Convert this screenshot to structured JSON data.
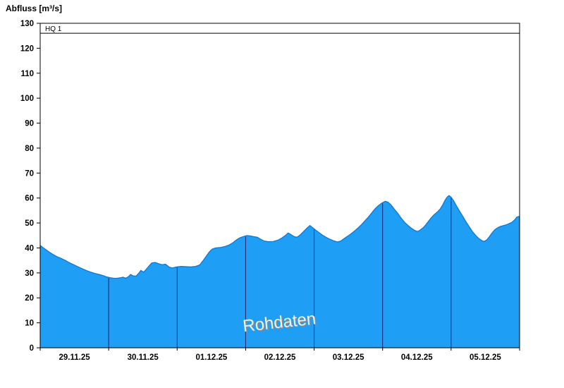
{
  "title": "Abfluss [m³/s]",
  "chart_data": {
    "type": "area",
    "title": "Abfluss [m³/s]",
    "xlabel": "",
    "ylabel": "Abfluss [m³/s]",
    "ylim": [
      0,
      130
    ],
    "ytick_step": 10,
    "y_tick_labels": [
      "0",
      "10",
      "20",
      "30",
      "40",
      "50",
      "60",
      "70",
      "80",
      "90",
      "100",
      "110",
      "120",
      "130"
    ],
    "x_tick_labels": [
      "29.11.25",
      "30.11.25",
      "01.12.25",
      "02.12.25",
      "03.12.25",
      "04.12.25",
      "05.12.25"
    ],
    "x_domain_days": 7,
    "grid": "vertical-day-boundary-lines",
    "legend": "none",
    "watermark": "Rohdaten",
    "watermark_pos": [
      3.5,
      8
    ],
    "threshold": {
      "label": "HQ 1",
      "value": 126
    },
    "colors": {
      "fill": "#1E9EF5",
      "stroke": "#1272C8",
      "day_line": "#1c2273",
      "axis": "#000000",
      "watermark": "#f2f2f2",
      "watermark_shadow": "#8a8a8a"
    },
    "series": [
      {
        "name": "Abfluss Rohdaten",
        "unit": "m³/s",
        "points": [
          [
            0.0,
            41.0
          ],
          [
            0.04,
            40.2
          ],
          [
            0.08,
            39.4
          ],
          [
            0.13,
            38.4
          ],
          [
            0.18,
            37.5
          ],
          [
            0.24,
            36.6
          ],
          [
            0.3,
            35.9
          ],
          [
            0.36,
            35.1
          ],
          [
            0.42,
            34.2
          ],
          [
            0.48,
            33.4
          ],
          [
            0.55,
            32.5
          ],
          [
            0.62,
            31.6
          ],
          [
            0.68,
            30.9
          ],
          [
            0.74,
            30.3
          ],
          [
            0.8,
            29.8
          ],
          [
            0.86,
            29.4
          ],
          [
            0.92,
            28.9
          ],
          [
            0.97,
            28.4
          ],
          [
            1.02,
            28.1
          ],
          [
            1.07,
            27.9
          ],
          [
            1.11,
            27.8
          ],
          [
            1.16,
            28.0
          ],
          [
            1.21,
            28.3
          ],
          [
            1.25,
            27.9
          ],
          [
            1.29,
            28.5
          ],
          [
            1.32,
            29.4
          ],
          [
            1.36,
            28.8
          ],
          [
            1.4,
            28.7
          ],
          [
            1.44,
            29.9
          ],
          [
            1.47,
            31.0
          ],
          [
            1.51,
            30.3
          ],
          [
            1.55,
            31.5
          ],
          [
            1.59,
            32.8
          ],
          [
            1.63,
            34.0
          ],
          [
            1.68,
            34.2
          ],
          [
            1.73,
            33.7
          ],
          [
            1.78,
            33.3
          ],
          [
            1.83,
            33.5
          ],
          [
            1.88,
            32.4
          ],
          [
            1.93,
            32.0
          ],
          [
            1.99,
            32.4
          ],
          [
            2.06,
            32.6
          ],
          [
            2.13,
            32.5
          ],
          [
            2.2,
            32.4
          ],
          [
            2.27,
            32.6
          ],
          [
            2.33,
            33.2
          ],
          [
            2.38,
            35.0
          ],
          [
            2.43,
            36.9
          ],
          [
            2.47,
            38.4
          ],
          [
            2.51,
            39.5
          ],
          [
            2.56,
            40.0
          ],
          [
            2.63,
            40.2
          ],
          [
            2.7,
            40.6
          ],
          [
            2.76,
            41.2
          ],
          [
            2.81,
            42.0
          ],
          [
            2.86,
            43.1
          ],
          [
            2.91,
            44.0
          ],
          [
            2.97,
            44.6
          ],
          [
            3.02,
            45.0
          ],
          [
            3.07,
            44.8
          ],
          [
            3.12,
            44.5
          ],
          [
            3.17,
            44.3
          ],
          [
            3.22,
            43.5
          ],
          [
            3.27,
            42.8
          ],
          [
            3.33,
            42.5
          ],
          [
            3.4,
            42.6
          ],
          [
            3.47,
            43.1
          ],
          [
            3.53,
            44.0
          ],
          [
            3.58,
            45.0
          ],
          [
            3.62,
            46.0
          ],
          [
            3.66,
            45.4
          ],
          [
            3.71,
            44.5
          ],
          [
            3.75,
            44.3
          ],
          [
            3.8,
            45.3
          ],
          [
            3.85,
            46.7
          ],
          [
            3.9,
            48.1
          ],
          [
            3.94,
            49.0
          ],
          [
            3.98,
            48.1
          ],
          [
            4.03,
            47.0
          ],
          [
            4.08,
            46.0
          ],
          [
            4.13,
            45.0
          ],
          [
            4.18,
            44.2
          ],
          [
            4.23,
            43.5
          ],
          [
            4.28,
            42.9
          ],
          [
            4.34,
            42.4
          ],
          [
            4.39,
            42.8
          ],
          [
            4.44,
            43.8
          ],
          [
            4.49,
            44.7
          ],
          [
            4.54,
            45.7
          ],
          [
            4.59,
            46.8
          ],
          [
            4.64,
            48.0
          ],
          [
            4.69,
            49.3
          ],
          [
            4.74,
            50.8
          ],
          [
            4.79,
            52.3
          ],
          [
            4.84,
            54.0
          ],
          [
            4.89,
            55.7
          ],
          [
            4.94,
            57.0
          ],
          [
            4.99,
            58.0
          ],
          [
            5.04,
            58.7
          ],
          [
            5.08,
            58.3
          ],
          [
            5.12,
            57.3
          ],
          [
            5.17,
            55.6
          ],
          [
            5.22,
            53.9
          ],
          [
            5.27,
            52.0
          ],
          [
            5.32,
            50.3
          ],
          [
            5.37,
            49.0
          ],
          [
            5.42,
            47.9
          ],
          [
            5.47,
            47.0
          ],
          [
            5.51,
            46.6
          ],
          [
            5.55,
            47.2
          ],
          [
            5.6,
            48.3
          ],
          [
            5.65,
            50.0
          ],
          [
            5.7,
            51.8
          ],
          [
            5.75,
            53.3
          ],
          [
            5.8,
            54.4
          ],
          [
            5.84,
            55.6
          ],
          [
            5.88,
            57.4
          ],
          [
            5.91,
            59.0
          ],
          [
            5.94,
            60.3
          ],
          [
            5.97,
            61.0
          ],
          [
            6.0,
            60.3
          ],
          [
            6.04,
            58.8
          ],
          [
            6.08,
            56.8
          ],
          [
            6.12,
            54.9
          ],
          [
            6.17,
            52.7
          ],
          [
            6.22,
            50.4
          ],
          [
            6.27,
            48.3
          ],
          [
            6.31,
            46.6
          ],
          [
            6.36,
            45.0
          ],
          [
            6.4,
            43.9
          ],
          [
            6.44,
            43.1
          ],
          [
            6.48,
            42.6
          ],
          [
            6.52,
            43.2
          ],
          [
            6.56,
            44.6
          ],
          [
            6.6,
            46.1
          ],
          [
            6.64,
            47.3
          ],
          [
            6.68,
            48.1
          ],
          [
            6.72,
            48.6
          ],
          [
            6.77,
            49.0
          ],
          [
            6.81,
            49.3
          ],
          [
            6.85,
            49.8
          ],
          [
            6.89,
            50.3
          ],
          [
            6.93,
            51.3
          ],
          [
            6.96,
            52.4
          ],
          [
            6.99,
            52.6
          ],
          [
            7.0,
            52.3
          ]
        ]
      }
    ]
  }
}
